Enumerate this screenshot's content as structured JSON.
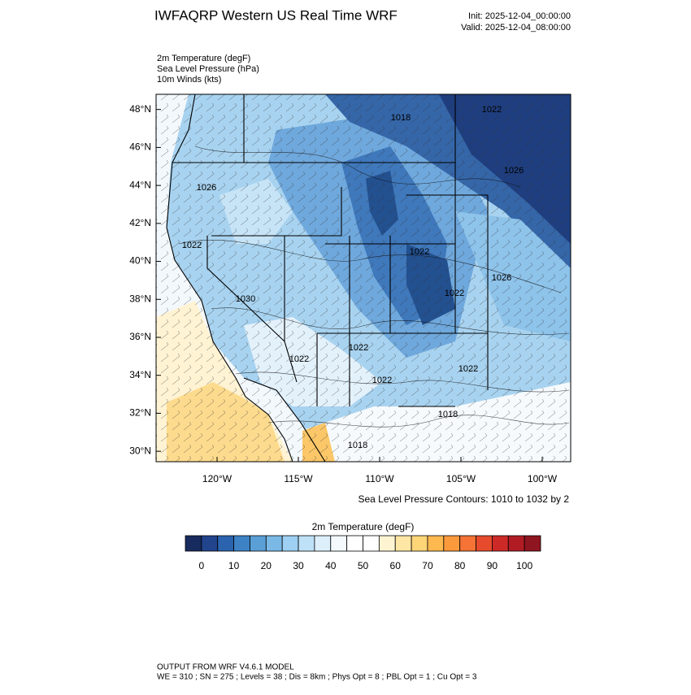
{
  "header": {
    "title": "IWFAQRP Western US Real Time WRF",
    "init": "Init: 2025-12-04_00:00:00",
    "valid": "Valid: 2025-12-04_08:00:00"
  },
  "fields": [
    "2m Temperature   (degF)",
    "Sea Level Pressure   (hPa)",
    "10m Winds   (kts)"
  ],
  "map": {
    "xlim": [
      -123.75,
      -98.25
    ],
    "ylim": [
      29.45,
      48.8
    ],
    "xticks": [
      {
        "value": -120,
        "label": "120°W"
      },
      {
        "value": -115,
        "label": "115°W"
      },
      {
        "value": -110,
        "label": "110°W"
      },
      {
        "value": -105,
        "label": "105°W"
      },
      {
        "value": -100,
        "label": "100°W"
      }
    ],
    "yticks": [
      {
        "value": 48,
        "label": "48°N"
      },
      {
        "value": 46,
        "label": "46°N"
      },
      {
        "value": 44,
        "label": "44°N"
      },
      {
        "value": 42,
        "label": "42°N"
      },
      {
        "value": 40,
        "label": "40°N"
      },
      {
        "value": 38,
        "label": "38°N"
      },
      {
        "value": 36,
        "label": "36°N"
      },
      {
        "value": 34,
        "label": "34°N"
      },
      {
        "value": 32,
        "label": "32°N"
      },
      {
        "value": 30,
        "label": "30°N"
      }
    ],
    "contour_labels": [
      "1018",
      "1022",
      "1026",
      "1022",
      "1022",
      "1026",
      "1022",
      "1030",
      "1022",
      "1022",
      "1022",
      "1022",
      "1018",
      "1018",
      "1026"
    ],
    "contour_note": "Sea Level Pressure Contours: 1010 to 1032 by 2"
  },
  "colorbar": {
    "title": "2m Temperature  (degF)",
    "clim": [
      -5,
      105
    ],
    "colors": [
      "#182b5e",
      "#21448c",
      "#2b63ae",
      "#3d82c4",
      "#5a9fd6",
      "#7ab9e6",
      "#9dd0f2",
      "#bfe1f7",
      "#ddeffb",
      "#f3f9fd",
      "#ffffff",
      "#ffffff",
      "#fff4d2",
      "#fee6a4",
      "#fed577",
      "#fdb950",
      "#fa9a3c",
      "#f47335",
      "#e64b2d",
      "#cd2a27",
      "#b11c24",
      "#8f1520"
    ],
    "ticks": [
      0,
      10,
      20,
      30,
      40,
      50,
      60,
      70,
      80,
      90,
      100
    ]
  },
  "footer": [
    "OUTPUT FROM WRF V4.6.1 MODEL",
    "WE = 310 ; SN = 275 ; Levels = 38 ; Dis = 8km ; Phys Opt = 8 ; PBL Opt = 1 ; Cu Opt = 3"
  ]
}
